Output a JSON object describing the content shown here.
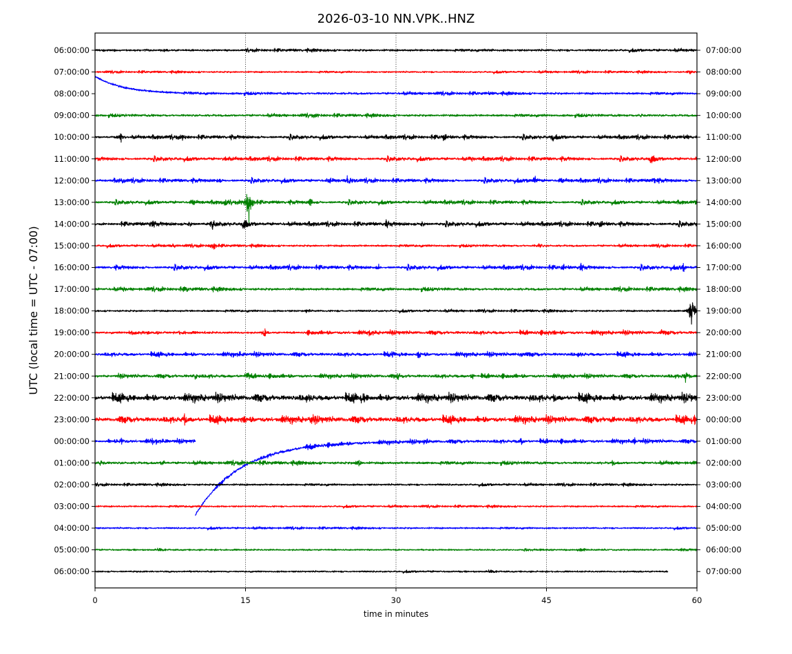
{
  "chart_data": {
    "type": "line",
    "title": "2026-03-10 NN.VPK..HNZ",
    "xlabel": "time in minutes",
    "ylabel": "UTC (local time = UTC - 07:00)",
    "xlim": [
      0,
      60
    ],
    "x_ticks": [
      0,
      15,
      30,
      45,
      60
    ],
    "x_tick_labels": [
      "0",
      "15",
      "30",
      "45",
      "60"
    ],
    "grid": "vertical dotted lines at 15, 30, 45",
    "color_cycle": [
      "#000000",
      "#ff0000",
      "#0000ff",
      "#008000"
    ],
    "left_tick_labels": [
      "06:00:00",
      "07:00:00",
      "08:00:00",
      "09:00:00",
      "10:00:00",
      "11:00:00",
      "12:00:00",
      "13:00:00",
      "14:00:00",
      "15:00:00",
      "16:00:00",
      "17:00:00",
      "18:00:00",
      "19:00:00",
      "20:00:00",
      "21:00:00",
      "22:00:00",
      "23:00:00",
      "00:00:00",
      "01:00:00",
      "02:00:00",
      "03:00:00",
      "04:00:00",
      "05:00:00",
      "06:00:00"
    ],
    "right_tick_labels": [
      "07:00:00",
      "08:00:00",
      "09:00:00",
      "10:00:00",
      "11:00:00",
      "12:00:00",
      "13:00:00",
      "14:00:00",
      "15:00:00",
      "16:00:00",
      "17:00:00",
      "18:00:00",
      "19:00:00",
      "20:00:00",
      "21:00:00",
      "22:00:00",
      "23:00:00",
      "00:00:00",
      "01:00:00",
      "02:00:00",
      "03:00:00",
      "04:00:00",
      "05:00:00",
      "06:00:00",
      "07:00:00"
    ],
    "traces": [
      {
        "row": 0,
        "color": "#000000",
        "x_end": 60,
        "noise": 0.9,
        "activity": 0.2,
        "events": [
          [
            7,
            1
          ],
          [
            39.5,
            1.2
          ]
        ]
      },
      {
        "row": 1,
        "color": "#ff0000",
        "x_end": 60,
        "noise": 0.7,
        "activity": 0.2,
        "events": [
          [
            59.3,
            1.5
          ]
        ]
      },
      {
        "row": 2,
        "color": "#0000ff",
        "x_end": 60,
        "noise": 0.9,
        "activity": 0.3,
        "events": [
          [
            39.5,
            1.3
          ]
        ],
        "drift": {
          "from": 0,
          "to": 12,
          "offset": 0.8
        }
      },
      {
        "row": 3,
        "color": "#008000",
        "x_end": 60,
        "noise": 0.9,
        "activity": 0.4,
        "events": [
          [
            22,
            1.2
          ],
          [
            54.5,
            1.2
          ]
        ]
      },
      {
        "row": 4,
        "color": "#000000",
        "x_end": 60,
        "noise": 0.9,
        "activity": 0.7,
        "events": [
          [
            2.6,
            3.5
          ],
          [
            8.8,
            2
          ],
          [
            34.8,
            3
          ],
          [
            45.6,
            2
          ],
          [
            59,
            2
          ]
        ]
      },
      {
        "row": 5,
        "color": "#ff0000",
        "x_end": 60,
        "noise": 0.9,
        "activity": 0.7,
        "events": [
          [
            13,
            2
          ],
          [
            37.5,
            2
          ],
          [
            55.5,
            2.5
          ]
        ]
      },
      {
        "row": 6,
        "color": "#0000ff",
        "x_end": 60,
        "noise": 0.9,
        "activity": 0.7,
        "events": [
          [
            2.7,
            2
          ],
          [
            12.3,
            2
          ],
          [
            23.5,
            2.5
          ],
          [
            25.3,
            2.5
          ],
          [
            43.8,
            5
          ],
          [
            46.5,
            2
          ],
          [
            55.7,
            3
          ]
        ]
      },
      {
        "row": 7,
        "color": "#008000",
        "x_end": 60,
        "noise": 0.9,
        "activity": 0.6,
        "events": [
          [
            9.8,
            2.5
          ],
          [
            13,
            2.5
          ],
          [
            15.3,
            15
          ],
          [
            21.5,
            2.5
          ],
          [
            35.5,
            1.5
          ]
        ]
      },
      {
        "row": 8,
        "color": "#000000",
        "x_end": 60,
        "noise": 1.0,
        "activity": 0.6,
        "events": [
          [
            5.6,
            2.5
          ],
          [
            9.4,
            2
          ],
          [
            11.7,
            3
          ],
          [
            14.9,
            3
          ],
          [
            29.1,
            2.5
          ],
          [
            32.6,
            2
          ],
          [
            50.4,
            2.5
          ]
        ]
      },
      {
        "row": 9,
        "color": "#ff0000",
        "x_end": 60,
        "noise": 0.8,
        "activity": 0.3,
        "events": [
          [
            7.9,
            1.5
          ],
          [
            11.8,
            3
          ],
          [
            44.3,
            2
          ]
        ]
      },
      {
        "row": 10,
        "color": "#0000ff",
        "x_end": 60,
        "noise": 0.9,
        "activity": 0.8,
        "events": [
          [
            28.3,
            1.5
          ],
          [
            46.7,
            2
          ],
          [
            48.4,
            2
          ],
          [
            58.6,
            2.5
          ]
        ]
      },
      {
        "row": 11,
        "color": "#008000",
        "x_end": 60,
        "noise": 1.0,
        "activity": 0.5,
        "events": [
          [
            2.9,
            1.5
          ],
          [
            9.1,
            2
          ]
        ]
      },
      {
        "row": 12,
        "color": "#000000",
        "x_end": 60,
        "noise": 0.8,
        "activity": 0.2,
        "events": [
          [
            21.1,
            1.5
          ],
          [
            59.5,
            11
          ]
        ]
      },
      {
        "row": 13,
        "color": "#ff0000",
        "x_end": 60,
        "noise": 0.9,
        "activity": 0.7,
        "events": [
          [
            16.9,
            2.5
          ],
          [
            27.5,
            2
          ],
          [
            45.4,
            2
          ],
          [
            56.5,
            1.5
          ]
        ]
      },
      {
        "row": 14,
        "color": "#0000ff",
        "x_end": 60,
        "noise": 0.9,
        "activity": 0.8,
        "events": [
          [
            14.5,
            2
          ],
          [
            29.6,
            2
          ],
          [
            32.2,
            2.5
          ],
          [
            42.4,
            2.5
          ],
          [
            48.3,
            2
          ]
        ]
      },
      {
        "row": 15,
        "color": "#008000",
        "x_end": 60,
        "noise": 0.9,
        "activity": 0.7,
        "events": [
          [
            10.1,
            2.5
          ],
          [
            15.1,
            3.5
          ],
          [
            30.2,
            2.5
          ],
          [
            37.6,
            1.5
          ],
          [
            58.9,
            4
          ]
        ]
      },
      {
        "row": 16,
        "color": "#000000",
        "x_end": 60,
        "noise": 1.5,
        "activity": 1.0,
        "events": [
          [
            21.3,
            3
          ],
          [
            26.7,
            3
          ],
          [
            43.4,
            2.5
          ],
          [
            45.8,
            2.5
          ],
          [
            59.3,
            2.5
          ]
        ]
      },
      {
        "row": 17,
        "color": "#ff0000",
        "x_end": 60,
        "noise": 1.4,
        "activity": 0.9,
        "events": [
          [
            8.9,
            4
          ],
          [
            14.6,
            3
          ],
          [
            21.6,
            3
          ],
          [
            51.6,
            2
          ],
          [
            59.8,
            2.5
          ]
        ]
      },
      {
        "row": 18,
        "color": "#0000ff",
        "x_end": 10,
        "noise": 0.9,
        "activity": 0.7,
        "events": [
          [
            2.6,
            2.5
          ],
          [
            5.8,
            2.5
          ],
          [
            7,
            2
          ]
        ]
      },
      {
        "row": 18,
        "color": "#0000ff",
        "x_start": 10,
        "x_end": 60,
        "noise": 0.9,
        "activity": 0.7,
        "events": [
          [
            21,
            2
          ],
          [
            21.8,
            2.5
          ],
          [
            32.9,
            2
          ],
          [
            42.5,
            2
          ],
          [
            53.8,
            2
          ]
        ],
        "recovery": {
          "from": 10,
          "to": 30,
          "offset": -3.4
        }
      },
      {
        "row": 19,
        "color": "#008000",
        "x_end": 60,
        "noise": 1.0,
        "activity": 0.5,
        "events": [
          [
            0.6,
            2
          ],
          [
            6.9,
            2
          ],
          [
            26.3,
            3.5
          ],
          [
            51.6,
            2
          ]
        ]
      },
      {
        "row": 20,
        "color": "#000000",
        "x_end": 60,
        "noise": 0.8,
        "activity": 0.2,
        "events": []
      },
      {
        "row": 21,
        "color": "#ff0000",
        "x_end": 60,
        "noise": 0.7,
        "activity": 0.2,
        "events": []
      },
      {
        "row": 22,
        "color": "#0000ff",
        "x_end": 60,
        "noise": 0.7,
        "activity": 0.2,
        "events": []
      },
      {
        "row": 23,
        "color": "#008000",
        "x_end": 60,
        "noise": 0.7,
        "activity": 0.1,
        "events": []
      },
      {
        "row": 24,
        "color": "#000000",
        "x_end": 57.1,
        "noise": 0.7,
        "activity": 0.1,
        "events": []
      }
    ]
  }
}
